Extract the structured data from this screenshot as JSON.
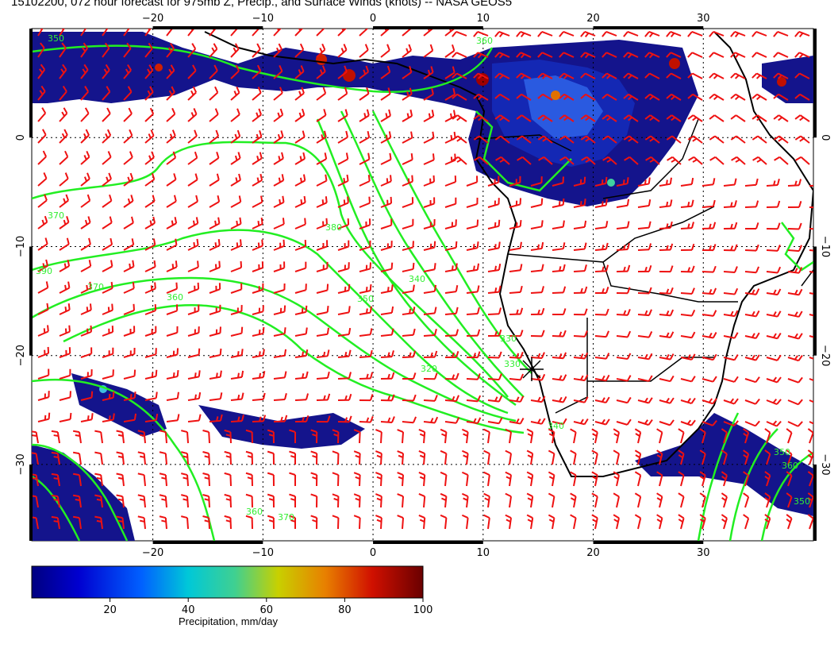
{
  "title": "15102200, 072 hour forecast for 975mb Z, Precip., and Surface Winds (knots) -- NASA GEOS5",
  "top_axis_ticks": [
    "−20",
    "−10",
    "0",
    "10",
    "20",
    "30"
  ],
  "bottom_axis_ticks": [
    "−20",
    "−10",
    "0",
    "10",
    "20",
    "30"
  ],
  "left_axis_ticks": [
    "0",
    "−10",
    "−20",
    "−30"
  ],
  "right_axis_ticks": [
    "0",
    "−10",
    "−20",
    "−30"
  ],
  "contour_labels": [
    "350",
    "360",
    "370",
    "380",
    "390",
    "370",
    "360",
    "350",
    "340",
    "330",
    "320",
    "330",
    "340",
    "350",
    "360",
    "350",
    "360",
    "370"
  ],
  "colorbar": {
    "title": "Precipitation, mm/day",
    "ticks": [
      "20",
      "40",
      "60",
      "80",
      "100"
    ],
    "range": [
      0,
      100
    ]
  },
  "colors": {
    "contour": "#22ee22",
    "wind_barb": "#ee1111",
    "coast": "#000000"
  }
}
